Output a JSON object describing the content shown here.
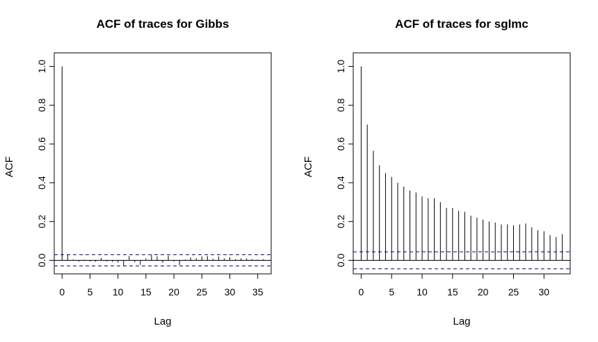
{
  "chart_data": [
    {
      "type": "bar",
      "title": "ACF of traces for Gibbs",
      "xlabel": "Lag",
      "ylabel": "ACF",
      "xlim": [
        -1.4,
        37.4
      ],
      "ylim": [
        -0.07,
        1.07
      ],
      "xticks": [
        0,
        5,
        10,
        15,
        20,
        25,
        30,
        35
      ],
      "yticks": [
        0.0,
        0.2,
        0.4,
        0.6,
        0.8,
        1.0
      ],
      "ci": 0.029,
      "ci_color": "#00008b",
      "lags": [
        0,
        1,
        2,
        3,
        4,
        5,
        6,
        7,
        8,
        9,
        10,
        11,
        12,
        13,
        14,
        15,
        16,
        17,
        18,
        19,
        20,
        21,
        22,
        23,
        24,
        25,
        26,
        27,
        28,
        29,
        30,
        31,
        32,
        33,
        34,
        35,
        36
      ],
      "values": [
        1.0,
        0.028,
        0.004,
        -0.006,
        0.004,
        -0.005,
        -0.007,
        0.012,
        -0.006,
        -0.008,
        -0.012,
        -0.028,
        0.022,
        -0.01,
        -0.024,
        0.01,
        0.027,
        0.02,
        -0.012,
        0.024,
        -0.006,
        -0.024,
        0.004,
        0.014,
        0.01,
        0.02,
        0.022,
        0.008,
        0.02,
        0.01,
        0.016,
        0.006,
        0.01,
        0.01,
        0.006,
        0.004,
        0.006
      ]
    },
    {
      "type": "bar",
      "title": "ACF of traces for sglmc",
      "xlabel": "Lag",
      "ylabel": "ACF",
      "xlim": [
        -1.3,
        34.3
      ],
      "ylim": [
        -0.07,
        1.07
      ],
      "xticks": [
        0,
        5,
        10,
        15,
        20,
        25,
        30
      ],
      "yticks": [
        0.0,
        0.2,
        0.4,
        0.6,
        0.8,
        1.0
      ],
      "ci": 0.044,
      "ci_color": "#00008b",
      "lags": [
        0,
        1,
        2,
        3,
        4,
        5,
        6,
        7,
        8,
        9,
        10,
        11,
        12,
        13,
        14,
        15,
        16,
        17,
        18,
        19,
        20,
        21,
        22,
        23,
        24,
        25,
        26,
        27,
        28,
        29,
        30,
        31,
        32,
        33
      ],
      "values": [
        1.0,
        0.7,
        0.565,
        0.49,
        0.45,
        0.43,
        0.4,
        0.38,
        0.36,
        0.35,
        0.33,
        0.32,
        0.32,
        0.3,
        0.27,
        0.27,
        0.255,
        0.25,
        0.23,
        0.22,
        0.21,
        0.2,
        0.195,
        0.185,
        0.185,
        0.18,
        0.185,
        0.19,
        0.17,
        0.155,
        0.15,
        0.13,
        0.12,
        0.135
      ]
    }
  ]
}
